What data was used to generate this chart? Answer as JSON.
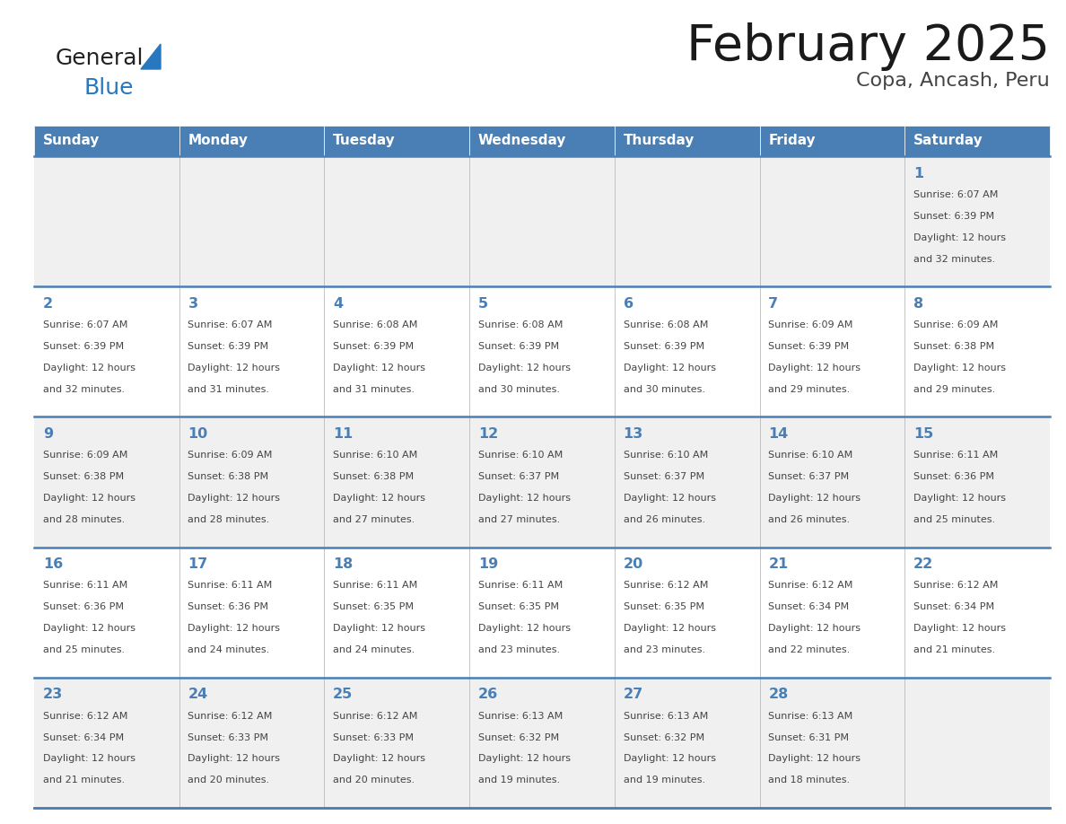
{
  "title": "February 2025",
  "subtitle": "Copa, Ancash, Peru",
  "days_of_week": [
    "Sunday",
    "Monday",
    "Tuesday",
    "Wednesday",
    "Thursday",
    "Friday",
    "Saturday"
  ],
  "header_bg_color": "#4a7fb5",
  "header_text_color": "#ffffff",
  "row0_bg": "#f0f0f0",
  "row1_bg": "#ffffff",
  "row2_bg": "#f0f0f0",
  "row3_bg": "#ffffff",
  "row4_bg": "#f0f0f0",
  "cell_border_color": "#4a7fb5",
  "cell_divider_color": "#bbbbbb",
  "day_number_color": "#4a7fb5",
  "text_color": "#444444",
  "logo_general_color": "#222222",
  "logo_blue_color": "#2878c0",
  "calendar_data": [
    [
      null,
      null,
      null,
      null,
      null,
      null,
      {
        "day": 1,
        "sunrise": "6:07 AM",
        "sunset": "6:39 PM",
        "daylight_hours": 12,
        "daylight_minutes": 32
      }
    ],
    [
      {
        "day": 2,
        "sunrise": "6:07 AM",
        "sunset": "6:39 PM",
        "daylight_hours": 12,
        "daylight_minutes": 32
      },
      {
        "day": 3,
        "sunrise": "6:07 AM",
        "sunset": "6:39 PM",
        "daylight_hours": 12,
        "daylight_minutes": 31
      },
      {
        "day": 4,
        "sunrise": "6:08 AM",
        "sunset": "6:39 PM",
        "daylight_hours": 12,
        "daylight_minutes": 31
      },
      {
        "day": 5,
        "sunrise": "6:08 AM",
        "sunset": "6:39 PM",
        "daylight_hours": 12,
        "daylight_minutes": 30
      },
      {
        "day": 6,
        "sunrise": "6:08 AM",
        "sunset": "6:39 PM",
        "daylight_hours": 12,
        "daylight_minutes": 30
      },
      {
        "day": 7,
        "sunrise": "6:09 AM",
        "sunset": "6:39 PM",
        "daylight_hours": 12,
        "daylight_minutes": 29
      },
      {
        "day": 8,
        "sunrise": "6:09 AM",
        "sunset": "6:38 PM",
        "daylight_hours": 12,
        "daylight_minutes": 29
      }
    ],
    [
      {
        "day": 9,
        "sunrise": "6:09 AM",
        "sunset": "6:38 PM",
        "daylight_hours": 12,
        "daylight_minutes": 28
      },
      {
        "day": 10,
        "sunrise": "6:09 AM",
        "sunset": "6:38 PM",
        "daylight_hours": 12,
        "daylight_minutes": 28
      },
      {
        "day": 11,
        "sunrise": "6:10 AM",
        "sunset": "6:38 PM",
        "daylight_hours": 12,
        "daylight_minutes": 27
      },
      {
        "day": 12,
        "sunrise": "6:10 AM",
        "sunset": "6:37 PM",
        "daylight_hours": 12,
        "daylight_minutes": 27
      },
      {
        "day": 13,
        "sunrise": "6:10 AM",
        "sunset": "6:37 PM",
        "daylight_hours": 12,
        "daylight_minutes": 26
      },
      {
        "day": 14,
        "sunrise": "6:10 AM",
        "sunset": "6:37 PM",
        "daylight_hours": 12,
        "daylight_minutes": 26
      },
      {
        "day": 15,
        "sunrise": "6:11 AM",
        "sunset": "6:36 PM",
        "daylight_hours": 12,
        "daylight_minutes": 25
      }
    ],
    [
      {
        "day": 16,
        "sunrise": "6:11 AM",
        "sunset": "6:36 PM",
        "daylight_hours": 12,
        "daylight_minutes": 25
      },
      {
        "day": 17,
        "sunrise": "6:11 AM",
        "sunset": "6:36 PM",
        "daylight_hours": 12,
        "daylight_minutes": 24
      },
      {
        "day": 18,
        "sunrise": "6:11 AM",
        "sunset": "6:35 PM",
        "daylight_hours": 12,
        "daylight_minutes": 24
      },
      {
        "day": 19,
        "sunrise": "6:11 AM",
        "sunset": "6:35 PM",
        "daylight_hours": 12,
        "daylight_minutes": 23
      },
      {
        "day": 20,
        "sunrise": "6:12 AM",
        "sunset": "6:35 PM",
        "daylight_hours": 12,
        "daylight_minutes": 23
      },
      {
        "day": 21,
        "sunrise": "6:12 AM",
        "sunset": "6:34 PM",
        "daylight_hours": 12,
        "daylight_minutes": 22
      },
      {
        "day": 22,
        "sunrise": "6:12 AM",
        "sunset": "6:34 PM",
        "daylight_hours": 12,
        "daylight_minutes": 21
      }
    ],
    [
      {
        "day": 23,
        "sunrise": "6:12 AM",
        "sunset": "6:34 PM",
        "daylight_hours": 12,
        "daylight_minutes": 21
      },
      {
        "day": 24,
        "sunrise": "6:12 AM",
        "sunset": "6:33 PM",
        "daylight_hours": 12,
        "daylight_minutes": 20
      },
      {
        "day": 25,
        "sunrise": "6:12 AM",
        "sunset": "6:33 PM",
        "daylight_hours": 12,
        "daylight_minutes": 20
      },
      {
        "day": 26,
        "sunrise": "6:13 AM",
        "sunset": "6:32 PM",
        "daylight_hours": 12,
        "daylight_minutes": 19
      },
      {
        "day": 27,
        "sunrise": "6:13 AM",
        "sunset": "6:32 PM",
        "daylight_hours": 12,
        "daylight_minutes": 19
      },
      {
        "day": 28,
        "sunrise": "6:13 AM",
        "sunset": "6:31 PM",
        "daylight_hours": 12,
        "daylight_minutes": 18
      },
      null
    ]
  ]
}
